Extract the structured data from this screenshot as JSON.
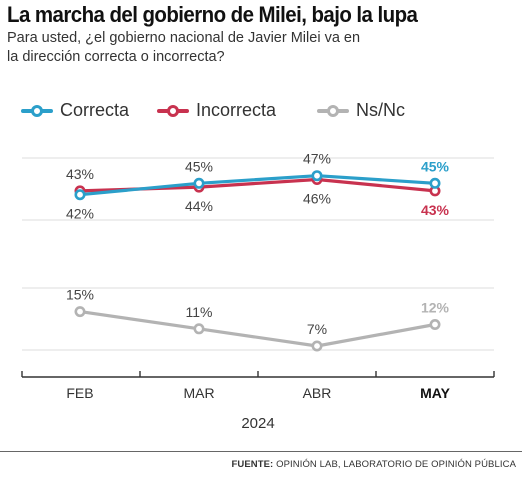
{
  "header": {
    "title": "La marcha del gobierno de Milei, bajo la lupa",
    "subtitle": "Para usted, ¿el gobierno nacional de Javier Milei va en la dirección correcta o incorrecta?"
  },
  "chart_data": {
    "type": "line",
    "categories": [
      "FEB",
      "MAR",
      "ABR",
      "MAY"
    ],
    "highlight_category": "MAY",
    "xlabel": "2024",
    "series": [
      {
        "name": "Correcta",
        "color": "#2b9fca",
        "values": [
          42,
          45,
          47,
          45
        ],
        "labels": [
          "42%",
          "45%",
          "47%",
          "45%"
        ],
        "label_positions": [
          "below",
          "above",
          "above",
          "above"
        ]
      },
      {
        "name": "Incorrecta",
        "color": "#c8324f",
        "values": [
          43,
          44,
          46,
          43
        ],
        "labels": [
          "43%",
          "44%",
          "46%",
          "43%"
        ],
        "label_positions": [
          "above",
          "below",
          "below",
          "below"
        ]
      },
      {
        "name": "Ns/Nc",
        "color": "#b3b3b3",
        "values": [
          15,
          11,
          7,
          12
        ],
        "labels": [
          "15%",
          "11%",
          "7%",
          "12%"
        ],
        "label_positions": [
          "above",
          "above",
          "above",
          "above"
        ]
      }
    ],
    "grid": "horizontal"
  },
  "footer": {
    "source_label": "FUENTE:",
    "source_text": "OPINIÓN LAB, LABORATORIO DE OPINIÓN PÚBLICA"
  }
}
